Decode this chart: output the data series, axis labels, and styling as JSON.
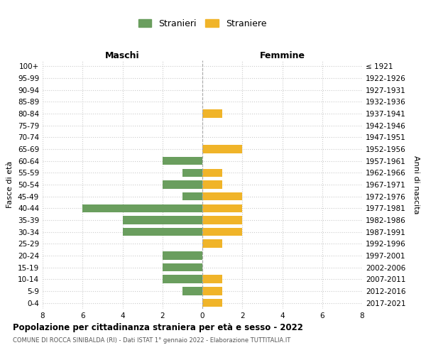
{
  "age_groups": [
    "100+",
    "95-99",
    "90-94",
    "85-89",
    "80-84",
    "75-79",
    "70-74",
    "65-69",
    "60-64",
    "55-59",
    "50-54",
    "45-49",
    "40-44",
    "35-39",
    "30-34",
    "25-29",
    "20-24",
    "15-19",
    "10-14",
    "5-9",
    "0-4"
  ],
  "birth_years": [
    "≤ 1921",
    "1922-1926",
    "1927-1931",
    "1932-1936",
    "1937-1941",
    "1942-1946",
    "1947-1951",
    "1952-1956",
    "1957-1961",
    "1962-1966",
    "1967-1971",
    "1972-1976",
    "1977-1981",
    "1982-1986",
    "1987-1991",
    "1992-1996",
    "1997-2001",
    "2002-2006",
    "2007-2011",
    "2012-2016",
    "2017-2021"
  ],
  "maschi": [
    0,
    0,
    0,
    0,
    0,
    0,
    0,
    0,
    2,
    1,
    2,
    1,
    6,
    4,
    4,
    0,
    2,
    2,
    2,
    1,
    0
  ],
  "femmine": [
    0,
    0,
    0,
    0,
    1,
    0,
    0,
    2,
    0,
    1,
    1,
    2,
    2,
    2,
    2,
    1,
    0,
    0,
    1,
    1,
    1
  ],
  "maschi_color": "#6a9e5e",
  "femmine_color": "#f0b429",
  "background_color": "#ffffff",
  "grid_color": "#cccccc",
  "xlim": 8,
  "title": "Popolazione per cittadinanza straniera per età e sesso - 2022",
  "subtitle": "COMUNE DI ROCCA SINIBALDA (RI) - Dati ISTAT 1° gennaio 2022 - Elaborazione TUTTITALIA.IT",
  "xlabel_left": "Maschi",
  "xlabel_right": "Femmine",
  "ylabel_left": "Fasce di età",
  "ylabel_right": "Anni di nascita",
  "legend_maschi": "Stranieri",
  "legend_femmine": "Straniere"
}
